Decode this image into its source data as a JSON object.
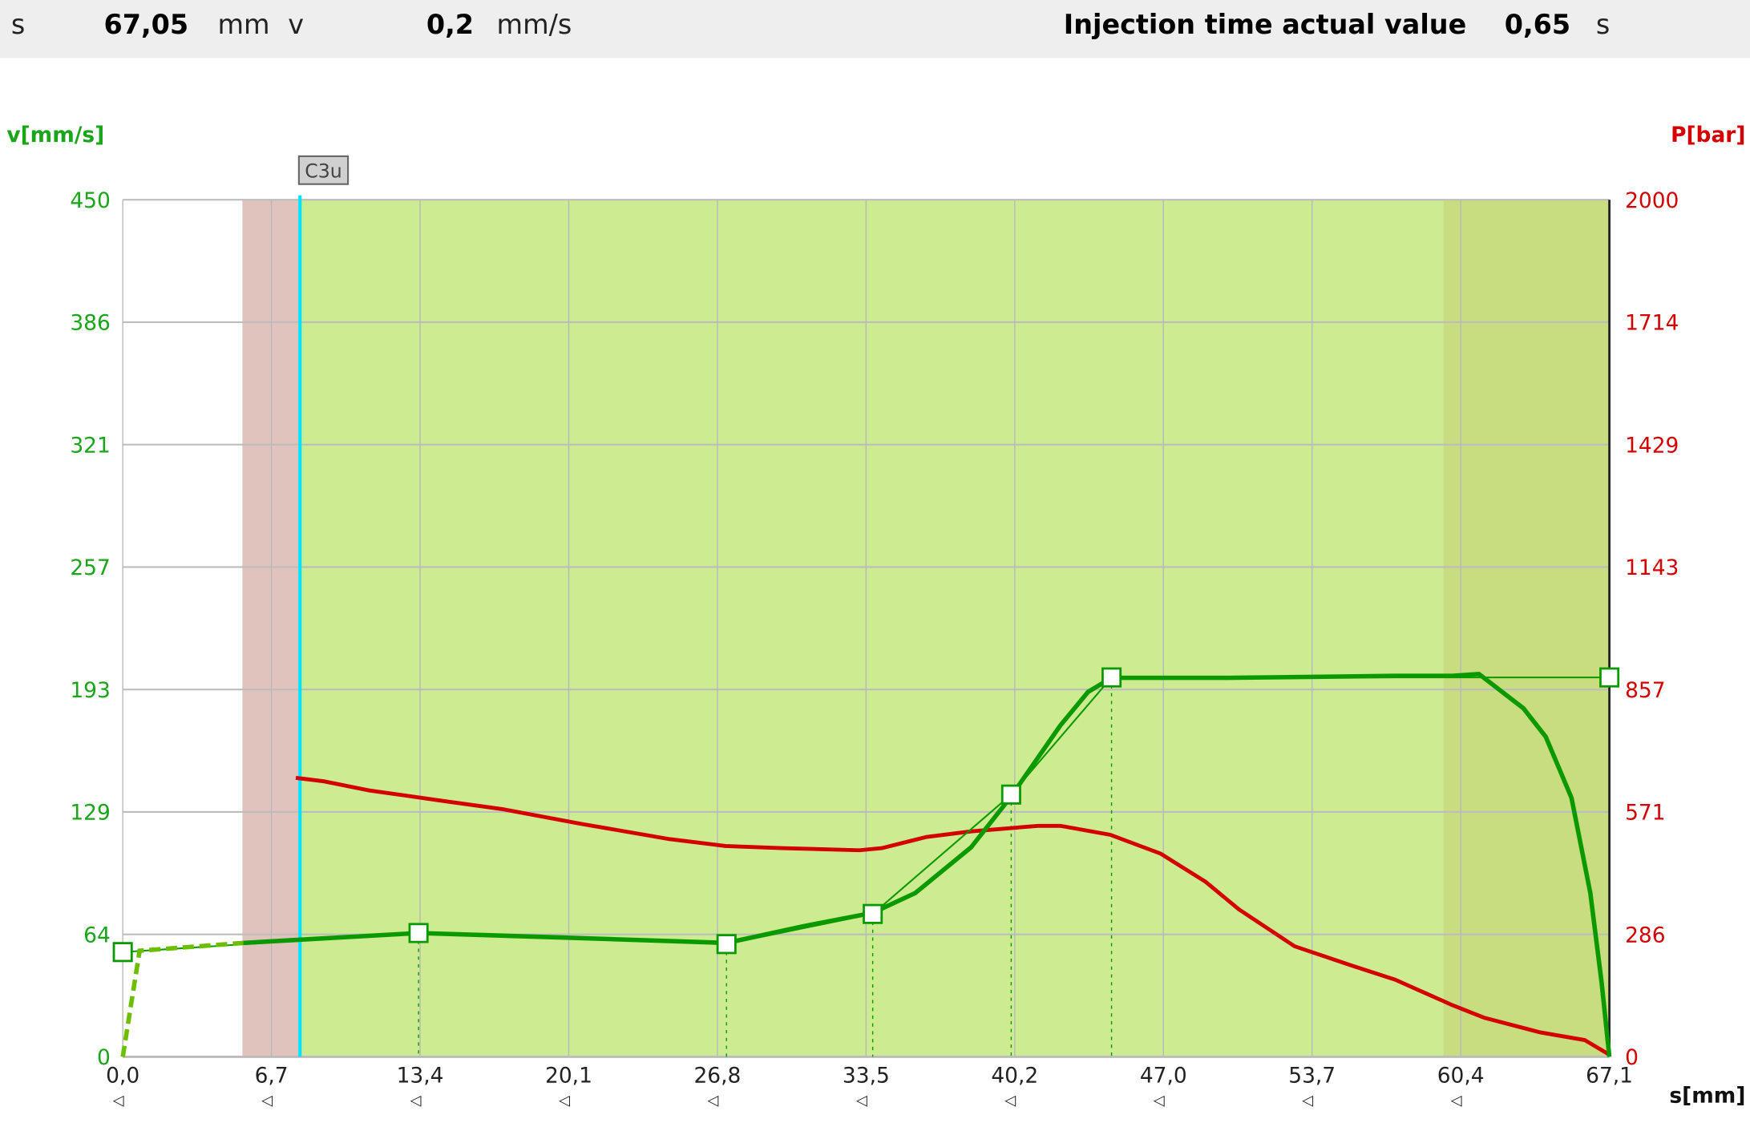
{
  "header": {
    "s_label": "s",
    "s_value": "67,05",
    "s_unit": "mm",
    "v_label": "v",
    "v_value": "0,2",
    "v_unit": "mm/s",
    "injection_time_label": "Injection time actual value",
    "injection_time_value": "0,65",
    "injection_time_unit": "s"
  },
  "colors": {
    "velocity": "#0a9a00",
    "velocity_axis": "#1aa51a",
    "pressure": "#d40000",
    "plot_bg": "#cdeb91",
    "end_zone": "#c8dc80",
    "pre_zone": "#e1c3bd",
    "marker_line": "#00e5ff"
  },
  "chart_data": {
    "type": "line",
    "xlabel": "s[mm]",
    "ylabel_left": "v[mm/s]",
    "ylabel_right": "P[bar]",
    "xlim": [
      0,
      67.1
    ],
    "ylim_left": [
      0,
      450
    ],
    "ylim_right": [
      0,
      2000
    ],
    "x_ticks": [
      "0,0",
      "6,7",
      "13,4",
      "20,1",
      "26,8",
      "33,5",
      "40,2",
      "47,0",
      "53,7",
      "60,4",
      "67,1"
    ],
    "y_ticks_left": [
      "450",
      "386",
      "321",
      "257",
      "193",
      "129",
      "64",
      "0"
    ],
    "y_ticks_right": [
      "2000",
      "1714",
      "1429",
      "1143",
      "857",
      "571",
      "286",
      "0"
    ],
    "grid": true,
    "marker": {
      "label": "C3u",
      "x": 8.0
    },
    "zones": {
      "pre_start": 5.4,
      "pre_end": 8.0,
      "end_start": 59.6
    },
    "series": [
      {
        "key": "velocity_setpoint",
        "axis": "left",
        "x": [
          0,
          13.35,
          27.25,
          33.85,
          40.1,
          44.63,
          67.1
        ],
        "y": [
          55,
          65,
          59.2,
          75,
          137.7,
          199.2,
          199.2
        ]
      },
      {
        "key": "velocity_actual",
        "axis": "left",
        "x": [
          0,
          0.76,
          5.44,
          8.01,
          13.35,
          19.65,
          27.25,
          30.73,
          33.85,
          35.77,
          38.29,
          40.05,
          42.32,
          43.57,
          44.63,
          49.87,
          57.43,
          59.95,
          61.21,
          63.22,
          64.23,
          65.39,
          66.24,
          66.75,
          67.1
        ],
        "y": [
          0,
          55.7,
          59.8,
          61.5,
          65,
          62.7,
          59.8,
          68.6,
          75.6,
          86,
          110,
          136,
          174,
          191.6,
          199,
          199,
          200,
          200,
          201,
          183,
          168,
          136,
          86,
          39,
          0
        ]
      },
      {
        "key": "pressure_actual",
        "axis": "right",
        "x": [
          7.81,
          9.07,
          11.08,
          14.61,
          17.13,
          20.65,
          24.68,
          27.2,
          29.72,
          33.25,
          34.26,
          36.27,
          38.29,
          41.31,
          42.32,
          44.58,
          46.85,
          48.86,
          50.38,
          52.89,
          55.41,
          57.43,
          59.95,
          61.46,
          63.98,
          65.99,
          67.1
        ],
        "y": [
          651,
          643,
          622,
          596,
          578,
          544,
          508,
          492,
          487,
          482,
          487,
          513,
          526,
          539,
          539,
          518,
          474,
          409,
          344,
          258,
          214,
          180,
          122,
          91,
          57,
          39,
          5
        ]
      }
    ]
  }
}
